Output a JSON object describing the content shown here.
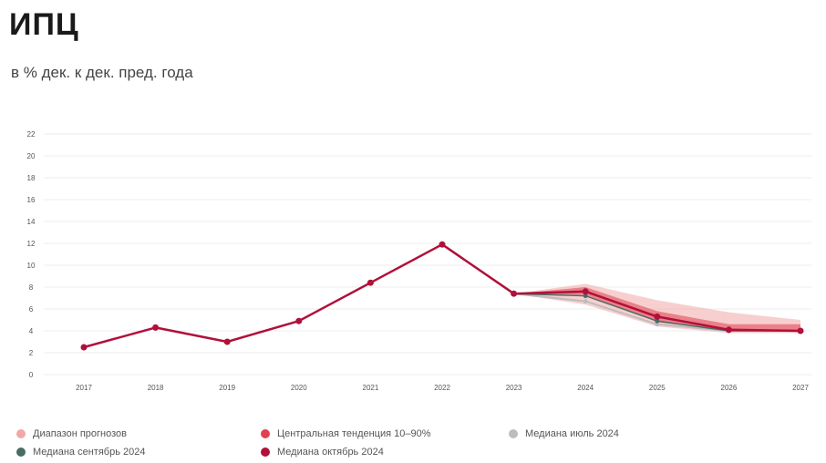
{
  "header": {
    "title": "ИПЦ",
    "subtitle": "в % дек. к дек. пред. года"
  },
  "legend": [
    {
      "label": "Диапазон прогнозов",
      "color": "#f2a7a7"
    },
    {
      "label": "Центральная тенденция 10–90%",
      "color": "#e0404f"
    },
    {
      "label": "Медиана июль 2024",
      "color": "#bdbdbd"
    },
    {
      "label": "Медиана сентябрь 2024",
      "color": "#4a6b63"
    },
    {
      "label": "Медиана октябрь 2024",
      "color": "#b0103a"
    }
  ],
  "chart_data": {
    "type": "line",
    "title": "ИПЦ",
    "subtitle": "в % дек. к дек. пред. года",
    "x": [
      "2017",
      "2018",
      "2019",
      "2020",
      "2021",
      "2022",
      "2023",
      "2024",
      "2025",
      "2026",
      "2027"
    ],
    "ylim": [
      0,
      22
    ],
    "yticks": [
      0,
      2,
      4,
      6,
      8,
      10,
      12,
      14,
      16,
      18,
      20,
      22
    ],
    "grid": true,
    "legend_position": "bottom",
    "historical": {
      "x": [
        "2017",
        "2018",
        "2019",
        "2020",
        "2021",
        "2022",
        "2023"
      ],
      "values": [
        2.5,
        4.3,
        3.0,
        4.9,
        8.4,
        11.9,
        7.4
      ]
    },
    "bands": [
      {
        "name": "Диапазон прогнозов",
        "x": [
          "2023",
          "2024",
          "2025",
          "2026",
          "2027"
        ],
        "low": [
          7.4,
          6.4,
          4.4,
          3.8,
          3.8
        ],
        "high": [
          7.4,
          8.3,
          6.8,
          5.7,
          5.0
        ]
      },
      {
        "name": "Центральная тенденция 10–90%",
        "x": [
          "2023",
          "2024",
          "2025",
          "2026",
          "2027"
        ],
        "low": [
          7.4,
          7.3,
          4.8,
          4.0,
          4.0
        ],
        "high": [
          7.4,
          8.0,
          5.8,
          4.6,
          4.6
        ]
      }
    ],
    "series": [
      {
        "name": "Медиана июль 2024",
        "x": [
          "2023",
          "2024",
          "2025",
          "2026",
          "2027"
        ],
        "values": [
          7.4,
          6.7,
          4.6,
          4.0,
          4.0
        ]
      },
      {
        "name": "Медиана сентябрь 2024",
        "x": [
          "2023",
          "2024",
          "2025",
          "2026",
          "2027"
        ],
        "values": [
          7.4,
          7.2,
          4.9,
          4.0,
          4.0
        ]
      },
      {
        "name": "Медиана октябрь 2024",
        "x": [
          "2023",
          "2024",
          "2025",
          "2026",
          "2027"
        ],
        "values": [
          7.4,
          7.6,
          5.3,
          4.1,
          4.0
        ]
      }
    ]
  }
}
